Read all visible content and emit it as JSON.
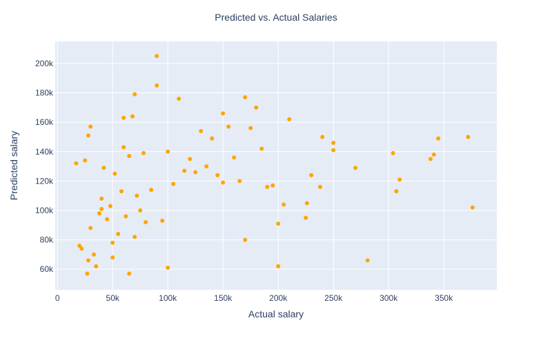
{
  "chart_data": {
    "type": "scatter",
    "title": "Predicted vs. Actual Salaries",
    "xlabel": "Actual salary",
    "ylabel": "Predicted salary",
    "xlim": [
      -2000,
      398000
    ],
    "ylim": [
      46000,
      215000
    ],
    "xticks": [
      {
        "value": 0,
        "label": "0"
      },
      {
        "value": 50000,
        "label": "50k"
      },
      {
        "value": 100000,
        "label": "100k"
      },
      {
        "value": 150000,
        "label": "150k"
      },
      {
        "value": 200000,
        "label": "200k"
      },
      {
        "value": 250000,
        "label": "250k"
      },
      {
        "value": 300000,
        "label": "300k"
      },
      {
        "value": 350000,
        "label": "350k"
      }
    ],
    "yticks": [
      {
        "value": 60000,
        "label": "60k"
      },
      {
        "value": 80000,
        "label": "80k"
      },
      {
        "value": 100000,
        "label": "100k"
      },
      {
        "value": 120000,
        "label": "120k"
      },
      {
        "value": 140000,
        "label": "140k"
      },
      {
        "value": 160000,
        "label": "160k"
      },
      {
        "value": 180000,
        "label": "180k"
      },
      {
        "value": 200000,
        "label": "200k"
      }
    ],
    "grid": true,
    "colors": {
      "marker": "#FFA500",
      "plot_bg": "#E5ECF6",
      "grid": "#FFFFFF",
      "text": "#2a3f5f"
    },
    "series": [
      {
        "x": [
          17000,
          20000,
          22000,
          25000,
          27000,
          28000,
          30000,
          30000,
          33000,
          35000,
          38000,
          40000,
          42000,
          45000,
          48000,
          50000,
          52000,
          55000,
          58000,
          60000,
          62000,
          65000,
          68000,
          70000,
          72000,
          75000,
          78000,
          80000,
          85000,
          90000,
          95000,
          100000,
          105000,
          110000,
          115000,
          120000,
          125000,
          130000,
          135000,
          140000,
          145000,
          150000,
          155000,
          160000,
          165000,
          170000,
          175000,
          180000,
          185000,
          190000,
          195000,
          200000,
          205000,
          210000,
          28000,
          40000,
          50000,
          60000,
          70000,
          90000,
          65000,
          100000,
          150000,
          170000,
          200000,
          226000,
          225000,
          230000,
          238000,
          240000,
          250000,
          250000,
          270000,
          281000,
          304000,
          307000,
          310000,
          338000,
          341000,
          345000,
          372000,
          376000
        ],
        "y": [
          132000,
          76000,
          74000,
          134000,
          57000,
          151000,
          157000,
          88000,
          70000,
          62000,
          98000,
          101000,
          129000,
          94000,
          103000,
          68000,
          125000,
          84000,
          113000,
          143000,
          96000,
          137000,
          164000,
          179000,
          110000,
          100000,
          139000,
          92000,
          114000,
          205000,
          93000,
          140000,
          118000,
          176000,
          127000,
          135000,
          126000,
          154000,
          130000,
          149000,
          124000,
          166000,
          157000,
          136000,
          120000,
          177000,
          156000,
          170000,
          142000,
          116000,
          117000,
          62000,
          104000,
          162000,
          66000,
          108000,
          78000,
          163000,
          82000,
          185000,
          57000,
          61000,
          119000,
          80000,
          91000,
          105000,
          95000,
          124000,
          116000,
          150000,
          146000,
          141000,
          129000,
          66000,
          139000,
          113000,
          121000,
          135000,
          138000,
          149000,
          150000,
          102000
        ]
      }
    ]
  }
}
